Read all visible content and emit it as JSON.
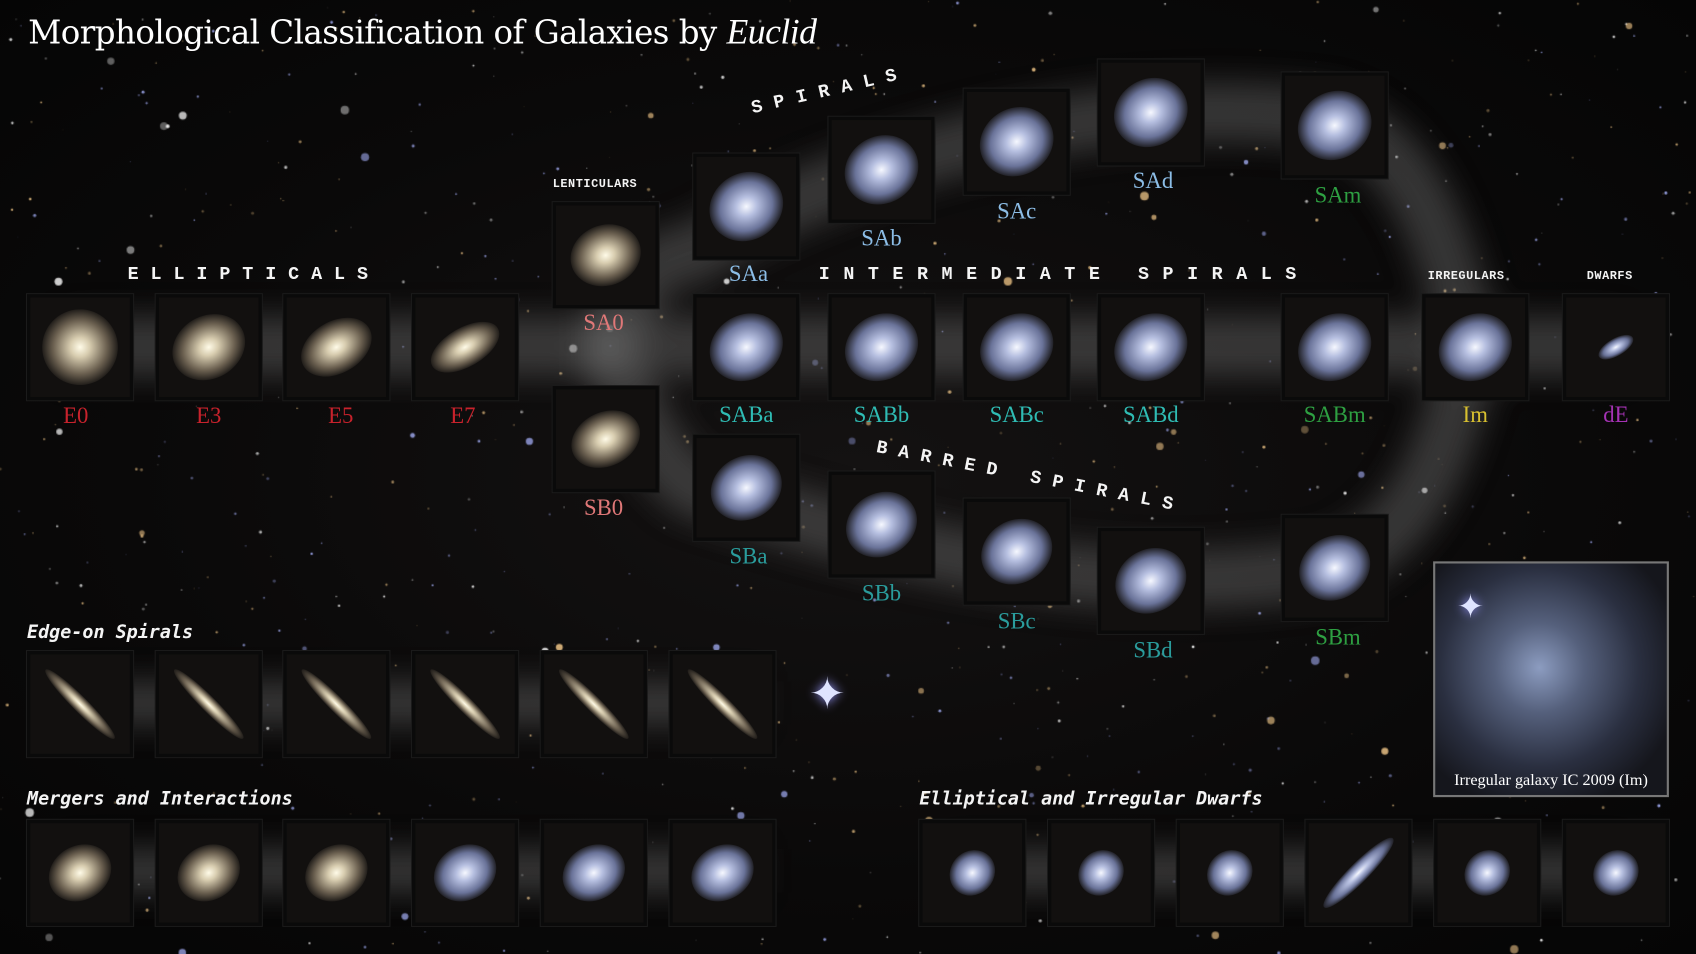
{
  "title": {
    "main": "Morphological Classification of Galaxies by ",
    "italic": "Euclid"
  },
  "headers": {
    "ellipticals": "ELLIPTICALS",
    "lenticulars": "LENTICULARS",
    "spirals": "SPIRALS",
    "intermediate_spirals": "INTERMEDIATE SPIRALS",
    "barred_spirals": "BARRED SPIRALS",
    "irregulars": "IRREGULARS",
    "dwarfs": "DWARFS"
  },
  "sections": {
    "edge_on": "Edge-on Spirals",
    "mergers": "Mergers and Interactions",
    "dwarfs": "Elliptical and Irregular Dwarfs"
  },
  "colors": {
    "elliptical": "#c8222c",
    "lenticular": "#e07878",
    "spiral": "#8cbde6",
    "intermediate": "#2fbcb4",
    "barred": "#2a9c9c",
    "magellanic": "#2ea042",
    "irregular": "#d8c030",
    "dwarf": "#a532b4"
  },
  "ellipticals": [
    "E0",
    "E3",
    "E5",
    "E7"
  ],
  "lenticulars": [
    "SA0",
    "SB0"
  ],
  "spirals": [
    "SAa",
    "SAb",
    "SAc",
    "SAd",
    "SAm"
  ],
  "intermediate": [
    "SABa",
    "SABb",
    "SABc",
    "SABd",
    "SABm",
    "Im",
    "dE"
  ],
  "barred": [
    "SBa",
    "SBb",
    "SBc",
    "SBd",
    "SBm"
  ],
  "inset": {
    "caption": "Irregular galaxy IC 2009 (Im)"
  }
}
